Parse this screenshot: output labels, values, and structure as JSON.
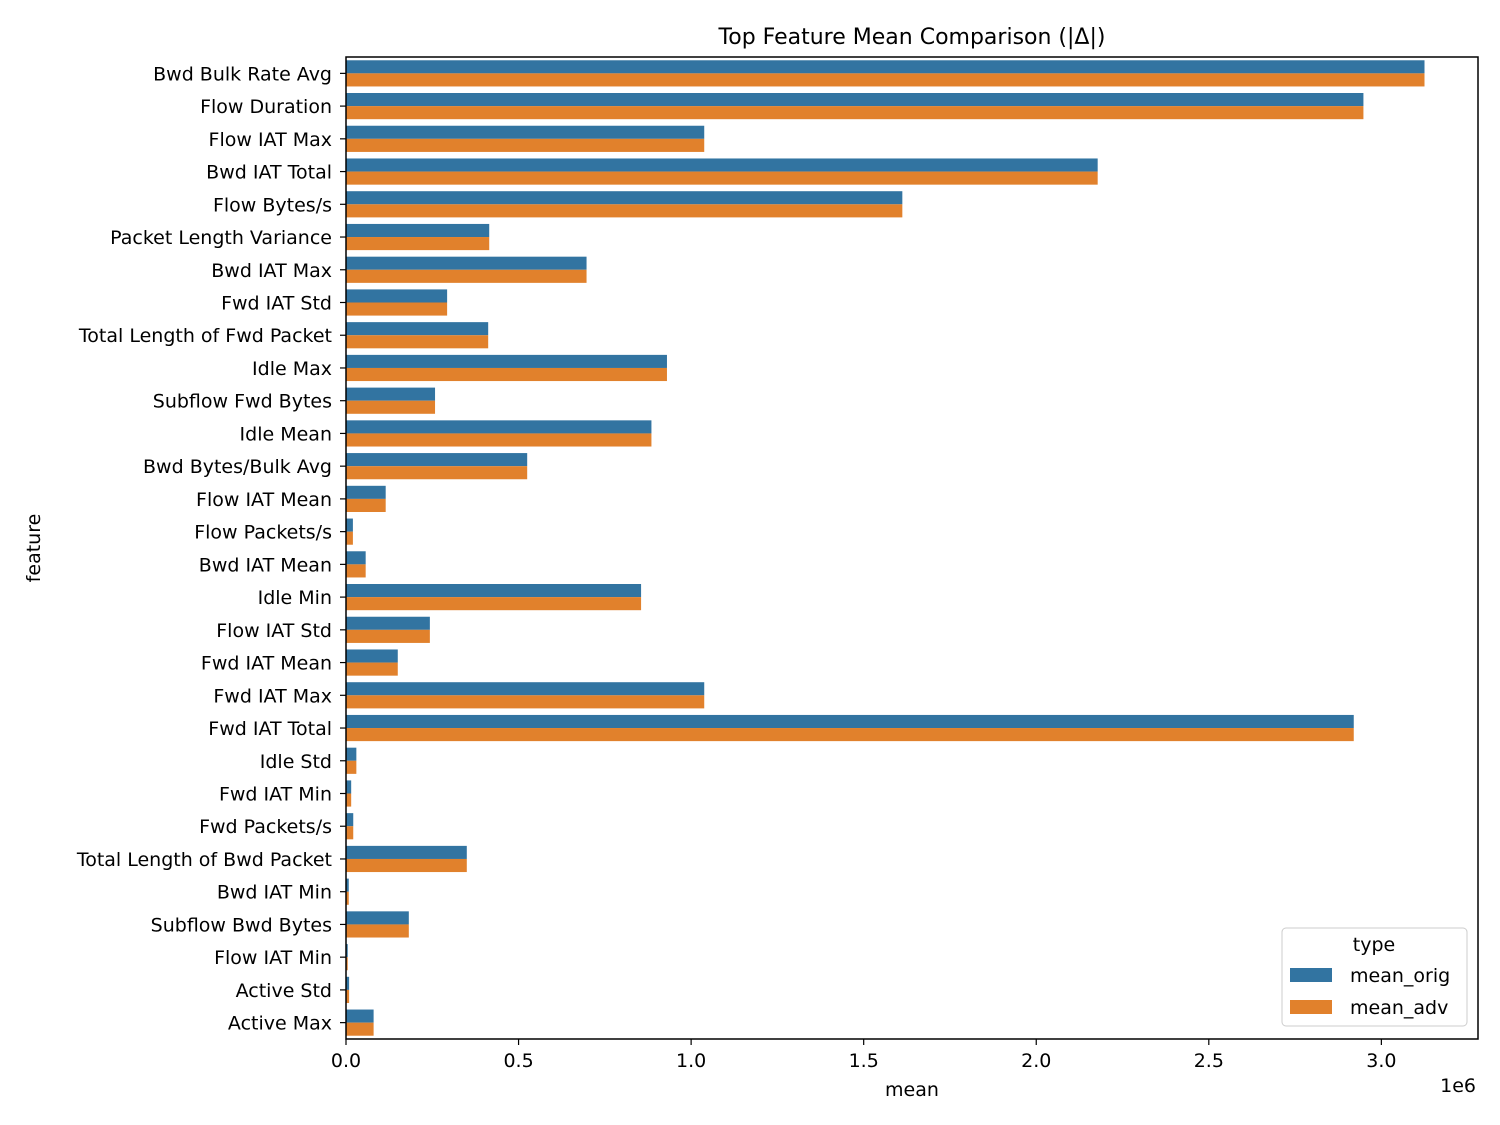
{
  "chart_data": {
    "type": "bar",
    "orientation": "horizontal",
    "title": "Top Feature Mean Comparison (|Δ|)",
    "xlabel": "mean",
    "ylabel": "feature",
    "x_offset_label": "1e6",
    "xlim": [
      0,
      3.28
    ],
    "x_scale_multiplier": 1000000,
    "x_ticks": [
      0.0,
      0.5,
      1.0,
      1.5,
      2.0,
      2.5,
      3.0
    ],
    "x_tick_labels": [
      "0.0",
      "0.5",
      "1.0",
      "1.5",
      "2.0",
      "2.5",
      "3.0"
    ],
    "grid": false,
    "legend": {
      "title": "type",
      "position": "bottom-right"
    },
    "categories": [
      "Bwd Bulk Rate Avg",
      "Flow Duration",
      "Flow IAT Max",
      "Bwd IAT Total",
      "Flow Bytes/s",
      "Packet Length Variance",
      "Bwd IAT Max",
      "Fwd IAT Std",
      "Total Length of Fwd Packet",
      "Idle Max",
      "Subflow Fwd Bytes",
      "Idle Mean",
      "Bwd Bytes/Bulk Avg",
      "Flow IAT Mean",
      "Flow Packets/s",
      "Bwd IAT Mean",
      "Idle Min",
      "Flow IAT Std",
      "Fwd IAT Mean",
      "Fwd IAT Max",
      "Fwd IAT Total",
      "Idle Std",
      "Fwd IAT Min",
      "Fwd Packets/s",
      "Total Length of Bwd Packet",
      "Bwd IAT Min",
      "Subflow Bwd Bytes",
      "Flow IAT Min",
      "Active Std",
      "Active Max"
    ],
    "series": [
      {
        "name": "mean_orig",
        "color": "#3274a1",
        "values": [
          3.125,
          2.948,
          1.038,
          2.178,
          1.612,
          0.415,
          0.697,
          0.293,
          0.412,
          0.93,
          0.258,
          0.885,
          0.525,
          0.115,
          0.02,
          0.057,
          0.855,
          0.243,
          0.15,
          1.038,
          2.92,
          0.03,
          0.015,
          0.021,
          0.35,
          0.008,
          0.182,
          0.005,
          0.009,
          0.08
        ]
      },
      {
        "name": "mean_adv",
        "color": "#e1812c",
        "values": [
          3.125,
          2.948,
          1.038,
          2.178,
          1.612,
          0.415,
          0.697,
          0.293,
          0.412,
          0.93,
          0.258,
          0.885,
          0.525,
          0.115,
          0.02,
          0.057,
          0.855,
          0.243,
          0.15,
          1.038,
          2.92,
          0.03,
          0.015,
          0.021,
          0.35,
          0.008,
          0.182,
          0.005,
          0.009,
          0.08
        ]
      }
    ]
  }
}
